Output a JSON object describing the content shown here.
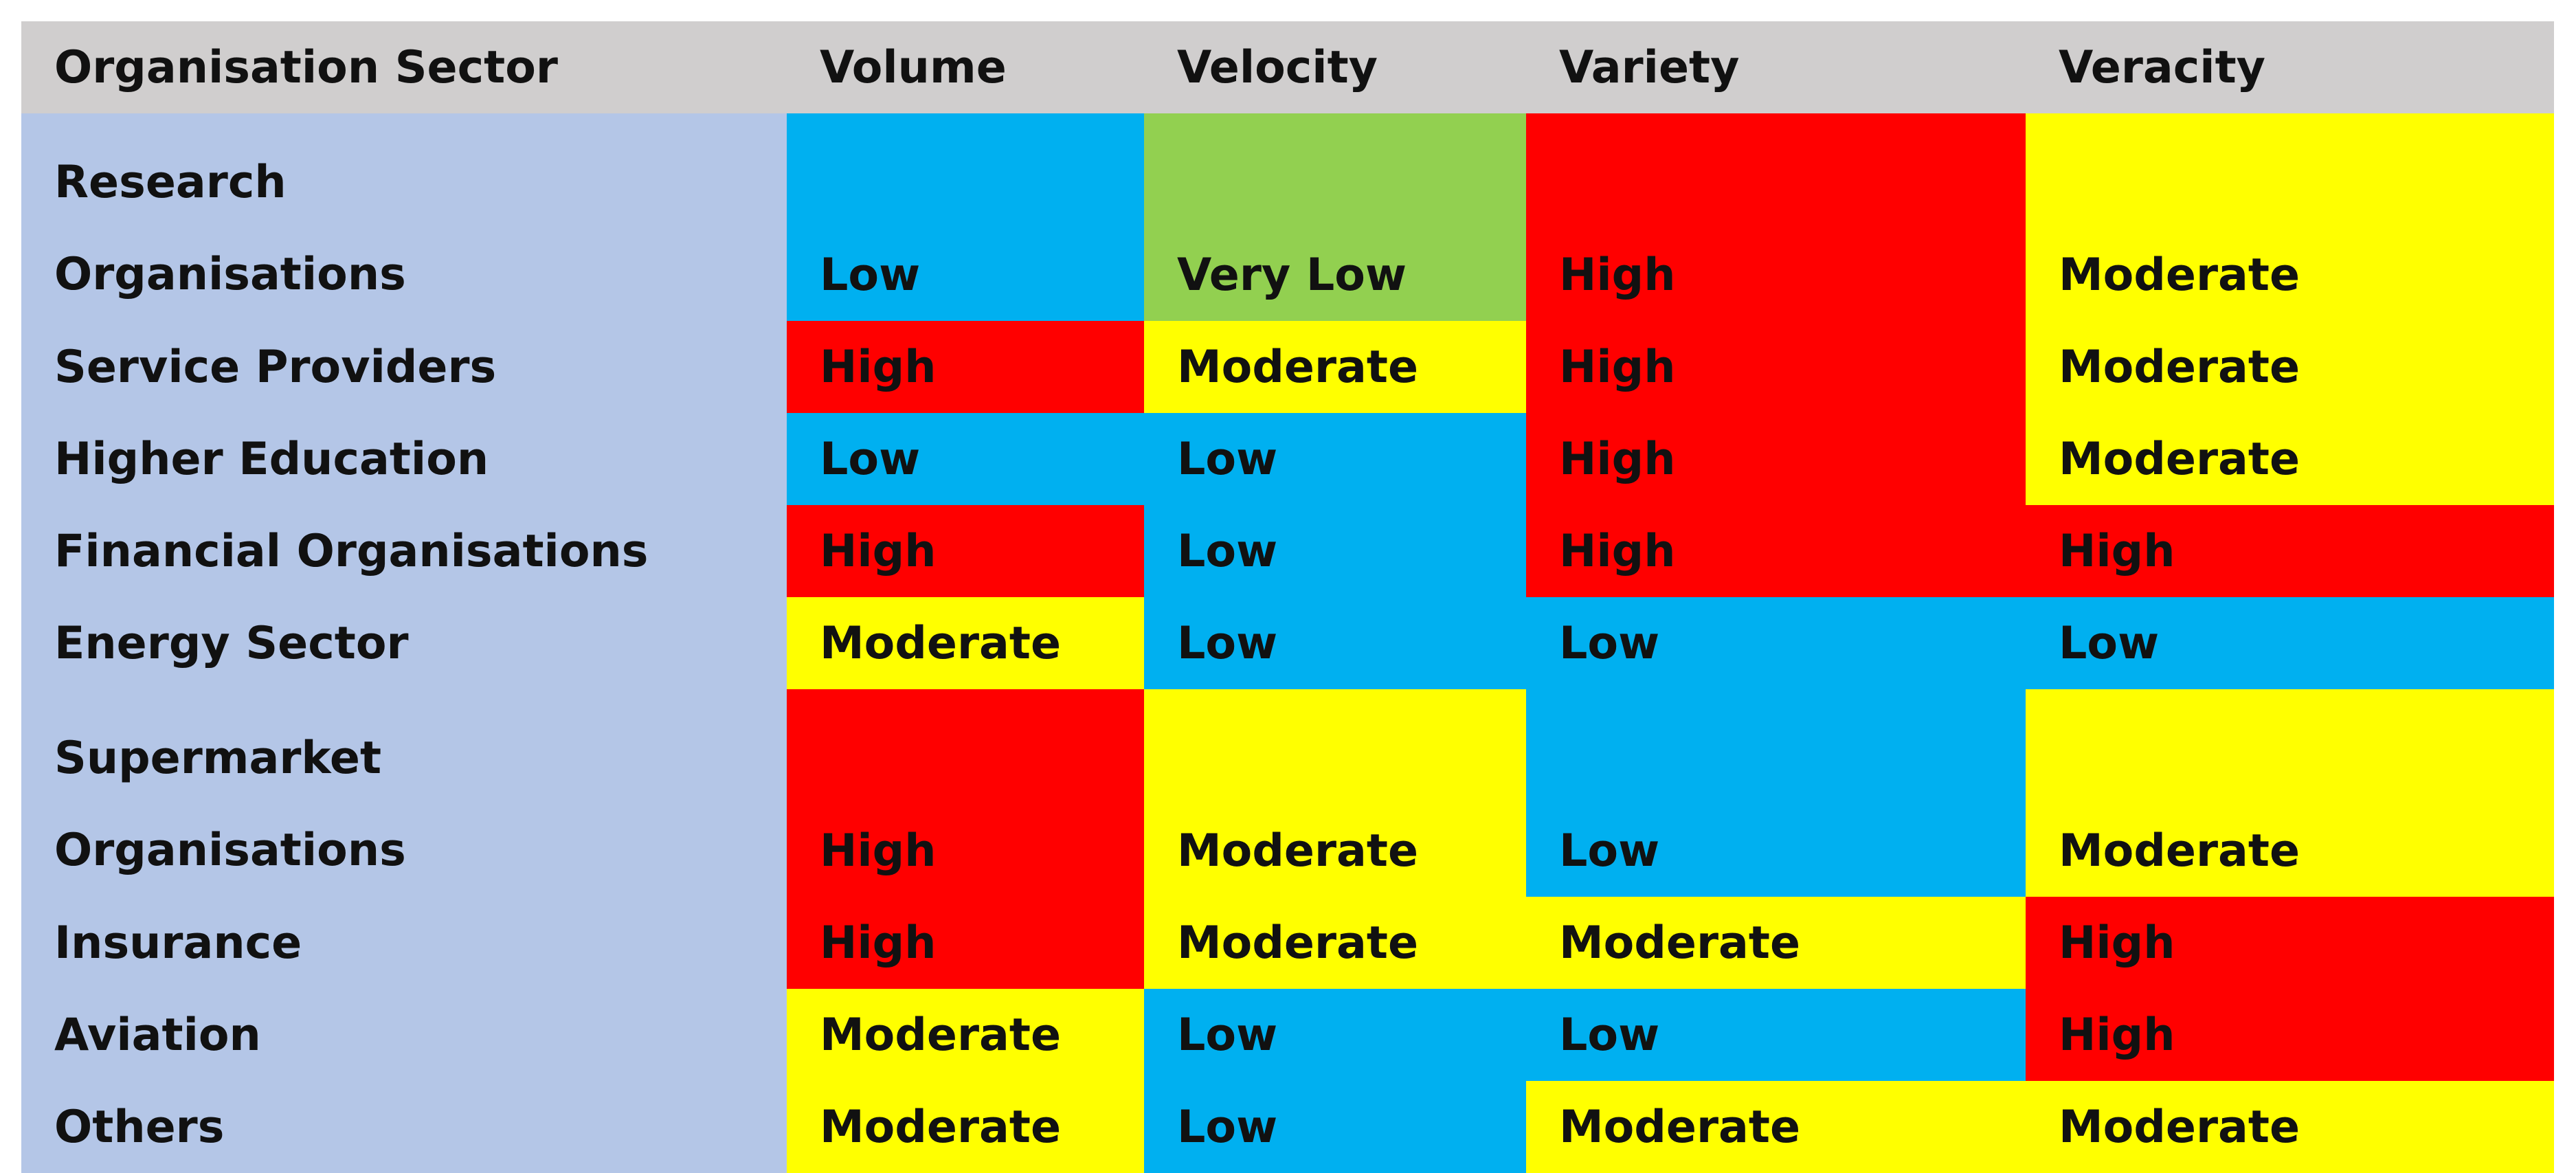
{
  "table": {
    "headers": [
      "Organisation Sector",
      "Volume",
      "Velocity",
      "Variety",
      "Veracity"
    ],
    "level_colors": {
      "Very Low": "#92d050",
      "Low": "#00b0f0",
      "Moderate": "#ffff00",
      "High": "#ff0000"
    },
    "header_bg": "#d0cece",
    "sector_bg": "#b4c6e7",
    "rows": [
      {
        "sector": "Research\nOrganisations",
        "values": [
          "Low",
          "Very Low",
          "High",
          "Moderate"
        ]
      },
      {
        "sector": "Service Providers",
        "values": [
          "High",
          "Moderate",
          "High",
          "Moderate"
        ]
      },
      {
        "sector": "Higher Education",
        "values": [
          "Low",
          "Low",
          "High",
          "Moderate"
        ]
      },
      {
        "sector": "Financial Organisations",
        "values": [
          "High",
          "Low",
          "High",
          "High"
        ]
      },
      {
        "sector": "Energy Sector",
        "values": [
          "Moderate",
          "Low",
          "Low",
          "Low"
        ]
      },
      {
        "sector": "Supermarket\nOrganisations",
        "values": [
          "High",
          "Moderate",
          "Low",
          "Moderate"
        ]
      },
      {
        "sector": "Insurance",
        "values": [
          "High",
          "Moderate",
          "Moderate",
          "High"
        ]
      },
      {
        "sector": "Aviation",
        "values": [
          "Moderate",
          "Low",
          "Low",
          "High"
        ]
      },
      {
        "sector": "Others",
        "values": [
          "Moderate",
          "Low",
          "Moderate",
          "Moderate"
        ]
      }
    ]
  }
}
